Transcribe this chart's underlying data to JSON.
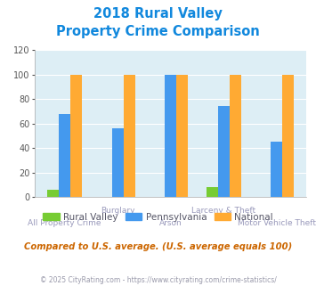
{
  "title_line1": "2018 Rural Valley",
  "title_line2": "Property Crime Comparison",
  "categories": [
    "All Property Crime",
    "Burglary",
    "Arson",
    "Larceny & Theft",
    "Motor Vehicle Theft"
  ],
  "rural_valley": [
    6,
    0,
    0,
    8,
    0
  ],
  "pennsylvania": [
    68,
    56,
    100,
    74,
    45
  ],
  "national": [
    100,
    100,
    100,
    100,
    100
  ],
  "colors": {
    "rural_valley": "#77cc33",
    "pennsylvania": "#4499ee",
    "national": "#ffaa33"
  },
  "ylim": [
    0,
    120
  ],
  "yticks": [
    0,
    20,
    40,
    60,
    80,
    100,
    120
  ],
  "bg_color": "#ddeef5",
  "title_color": "#1188dd",
  "xlabel_color": "#9999bb",
  "legend_labels": [
    "Rural Valley",
    "Pennsylvania",
    "National"
  ],
  "note_text": "Compared to U.S. average. (U.S. average equals 100)",
  "footer_text": "© 2025 CityRating.com - https://www.cityrating.com/crime-statistics/",
  "note_color": "#cc6600",
  "footer_color": "#9999aa",
  "bar_width": 0.22
}
